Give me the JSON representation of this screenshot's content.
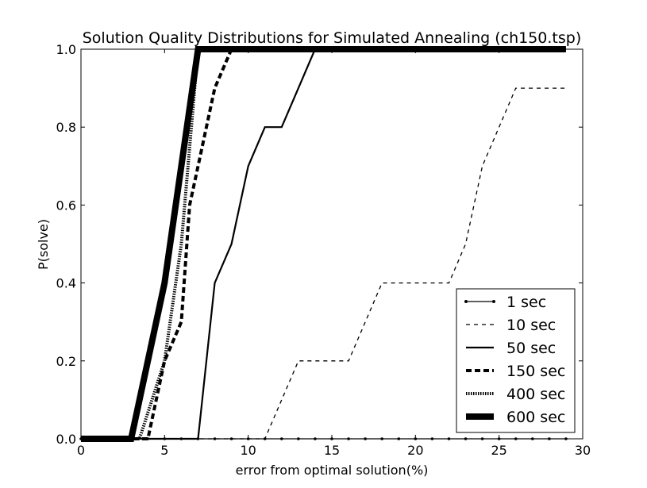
{
  "chart_data": {
    "type": "line",
    "title": "Solution Quality Distributions for Simulated Annealing (ch150.tsp)",
    "xlabel": "error from optimal solution(%)",
    "ylabel": "P(solve)",
    "xlim": [
      0,
      30
    ],
    "ylim": [
      0,
      1
    ],
    "x_ticks": [
      0,
      5,
      10,
      15,
      20,
      25,
      30
    ],
    "y_ticks": [
      0.0,
      0.2,
      0.4,
      0.6,
      0.8,
      1.0
    ],
    "x_tick_labels": [
      "0",
      "5",
      "10",
      "15",
      "20",
      "25",
      "30"
    ],
    "y_tick_labels": [
      "0.0",
      "0.2",
      "0.4",
      "0.6",
      "0.8",
      "1.0"
    ],
    "grid": false,
    "legend_position": "lower-right",
    "series": [
      {
        "name": "1 sec",
        "style": "dot-marker-line",
        "color": "#000000",
        "points": [
          [
            0,
            0
          ],
          [
            1,
            0
          ],
          [
            2,
            0
          ],
          [
            3,
            0
          ],
          [
            4,
            0
          ],
          [
            5,
            0
          ],
          [
            6,
            0
          ],
          [
            7,
            0
          ],
          [
            8,
            0
          ],
          [
            9,
            0
          ],
          [
            10,
            0
          ],
          [
            11,
            0
          ],
          [
            12,
            0
          ],
          [
            13,
            0
          ],
          [
            14,
            0
          ],
          [
            15,
            0
          ],
          [
            16,
            0
          ],
          [
            17,
            0
          ],
          [
            18,
            0
          ],
          [
            19,
            0
          ],
          [
            20,
            0
          ],
          [
            21,
            0
          ],
          [
            22,
            0
          ],
          [
            23,
            0
          ],
          [
            24,
            0
          ],
          [
            25,
            0
          ],
          [
            26,
            0
          ],
          [
            27,
            0
          ],
          [
            28,
            0
          ],
          [
            29,
            0
          ]
        ]
      },
      {
        "name": "10 sec",
        "style": "dashed",
        "color": "#000000",
        "points": [
          [
            0,
            0
          ],
          [
            11,
            0
          ],
          [
            13,
            0.2
          ],
          [
            16,
            0.2
          ],
          [
            18,
            0.4
          ],
          [
            22,
            0.4
          ],
          [
            23,
            0.5
          ],
          [
            24,
            0.7
          ],
          [
            26,
            0.9
          ],
          [
            29,
            0.9
          ]
        ]
      },
      {
        "name": "50 sec",
        "style": "solid",
        "color": "#000000",
        "points": [
          [
            0,
            0
          ],
          [
            7,
            0
          ],
          [
            8,
            0.4
          ],
          [
            9,
            0.5
          ],
          [
            10,
            0.7
          ],
          [
            11,
            0.8
          ],
          [
            12,
            0.8
          ],
          [
            14,
            1.0
          ],
          [
            29,
            1.0
          ]
        ]
      },
      {
        "name": "150 sec",
        "style": "thick-dashed",
        "color": "#000000",
        "points": [
          [
            0,
            0
          ],
          [
            4,
            0
          ],
          [
            5,
            0.2
          ],
          [
            6,
            0.3
          ],
          [
            6.5,
            0.6
          ],
          [
            7,
            0.7
          ],
          [
            8,
            0.9
          ],
          [
            9,
            1.0
          ],
          [
            29,
            1.0
          ]
        ]
      },
      {
        "name": "400 sec",
        "style": "dotted",
        "color": "#000000",
        "points": [
          [
            0,
            0
          ],
          [
            3.5,
            0
          ],
          [
            5,
            0.2
          ],
          [
            6,
            0.5
          ],
          [
            7,
            1.0
          ],
          [
            29,
            1.0
          ]
        ]
      },
      {
        "name": "600 sec",
        "style": "very-thick-solid",
        "color": "#000000",
        "points": [
          [
            0,
            0
          ],
          [
            3,
            0
          ],
          [
            5,
            0.4
          ],
          [
            7,
            1.0
          ],
          [
            29,
            1.0
          ]
        ]
      }
    ]
  }
}
